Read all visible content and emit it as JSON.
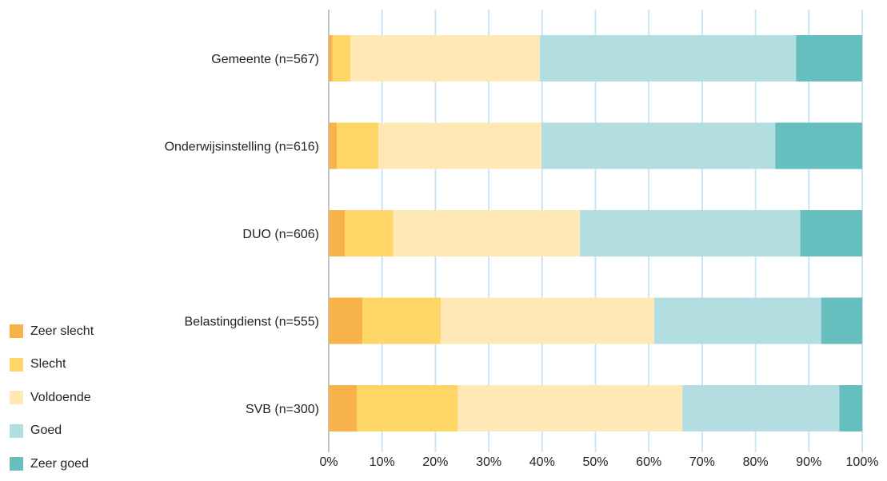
{
  "chart_data": {
    "type": "bar",
    "orientation": "horizontal",
    "stacked": true,
    "categories": [
      "Gemeente (n=567)",
      "Onderwijsinstelling (n=616)",
      "DUO (n=606)",
      "Belastingdienst (n=555)",
      "SVB (n=300)"
    ],
    "series": [
      {
        "name": "Zeer slecht",
        "color": "#f7b24a",
        "values": [
          0.7,
          1.5,
          3.0,
          6.3,
          5.3
        ]
      },
      {
        "name": "Slecht",
        "color": "#fdd667",
        "values": [
          3.4,
          7.8,
          9.1,
          14.7,
          18.9
        ]
      },
      {
        "name": "Voldoende",
        "color": "#fde8b6",
        "values": [
          35.5,
          30.6,
          35.0,
          40.0,
          42.1
        ]
      },
      {
        "name": "Goed",
        "color": "#b2dde1",
        "values": [
          48.0,
          43.8,
          41.3,
          31.3,
          29.4
        ]
      },
      {
        "name": "Zeer goed",
        "color": "#66bfbe",
        "values": [
          12.4,
          16.3,
          11.6,
          7.7,
          4.3
        ]
      }
    ],
    "x_ticks": [
      "0%",
      "10%",
      "20%",
      "30%",
      "40%",
      "50%",
      "60%",
      "70%",
      "80%",
      "90%",
      "100%"
    ],
    "xlim": [
      0,
      100
    ],
    "grid": true,
    "grid_color": "#c8e6f5",
    "legend_position": "bottom-left"
  }
}
